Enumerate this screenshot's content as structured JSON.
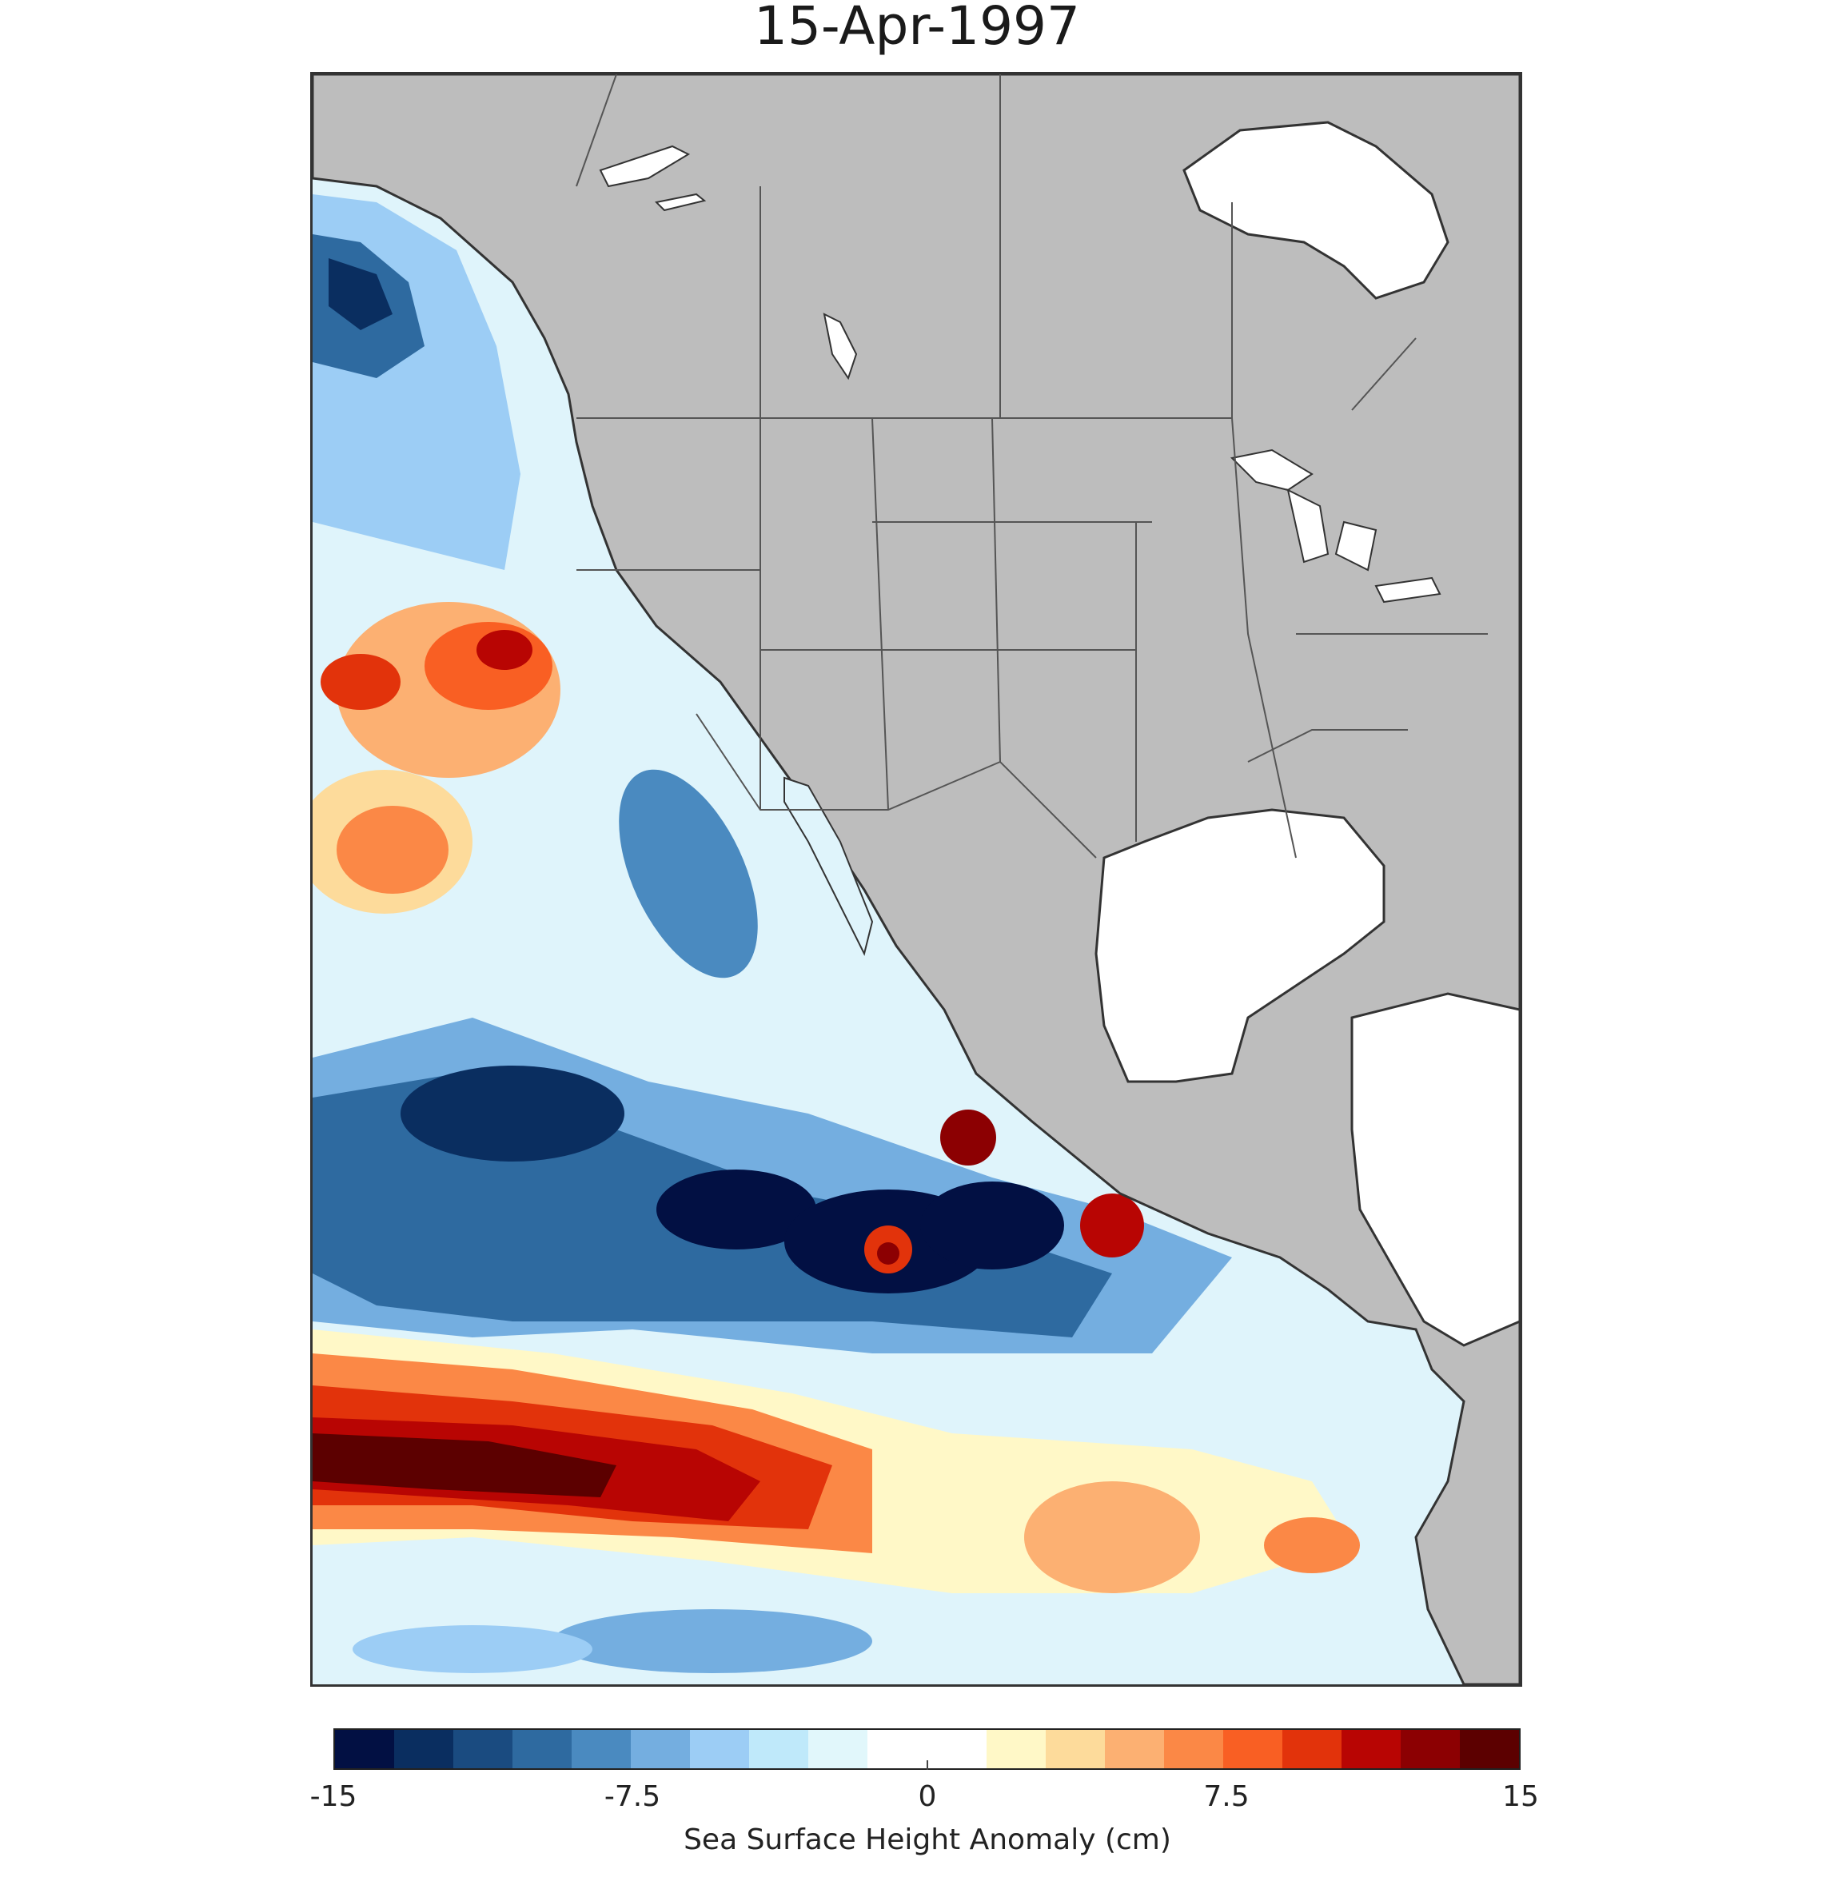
{
  "title": "15-Apr-1997",
  "colorbar": {
    "label": "Sea Surface Height Anomaly (cm)",
    "ticks": [
      "-15",
      "-7.5",
      "0",
      "7.5",
      "15"
    ],
    "min": -15,
    "max": 15,
    "colors": [
      "#021043",
      "#0a2e60",
      "#1a4b80",
      "#2e6aa0",
      "#4a8ac0",
      "#74aee0",
      "#9ccdf5",
      "#bfe9fa",
      "#e1f7fb",
      "#ffffff",
      "#ffffff",
      "#fff8c7",
      "#fddb9b",
      "#fcb072",
      "#fb8846",
      "#f95f23",
      "#e2330b",
      "#b80503",
      "#8c0002",
      "#5c0000"
    ]
  },
  "colors": {
    "land": "#bdbdbd",
    "water": "#ffffff",
    "border": "#555555",
    "coast": "#333333"
  }
}
